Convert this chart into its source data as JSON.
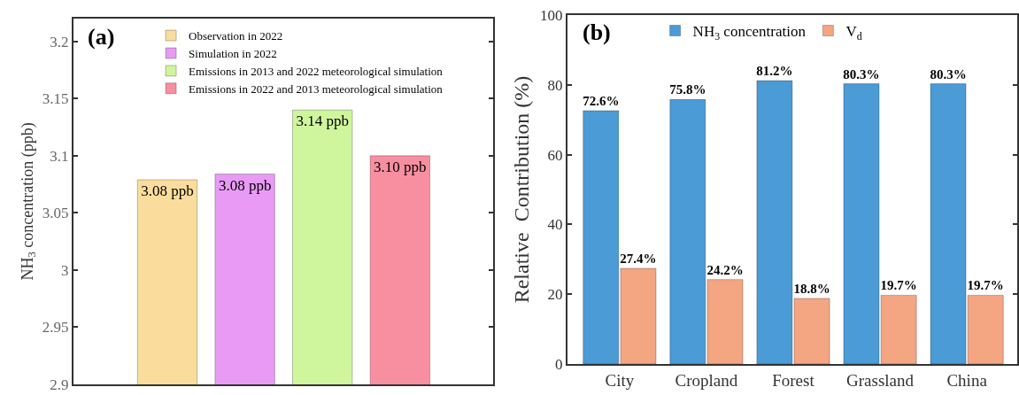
{
  "chart_data": [
    {
      "type": "bar",
      "categories": [
        null,
        null,
        null,
        null
      ],
      "ylabel": "NH$_{3}$ concentration (ppb)",
      "annotations": [
        "(a)"
      ],
      "ylim": [
        2.9,
        3.22
      ],
      "yticks": [
        2.9,
        2.95,
        3,
        3.05,
        3.1,
        3.15,
        3.2
      ],
      "legend": "top",
      "grid": false,
      "series": [
        {
          "name": "Observation in 2022",
          "color": "#fadd9d",
          "values": [
            3.079,
            null,
            null,
            null
          ],
          "value_labels": [
            "3.08 ppb",
            null,
            null,
            null
          ]
        },
        {
          "name": "Simulation in 2022",
          "color": "#e89af5",
          "values": [
            null,
            3.084,
            null,
            null
          ],
          "value_labels": [
            null,
            "3.08 ppb",
            null,
            null
          ]
        },
        {
          "name": "Emissions in 2013 and 2022 meteorological simulation",
          "color": "#cff59d",
          "values": [
            null,
            null,
            3.14,
            null
          ],
          "value_labels": [
            null,
            null,
            "3.14 ppb",
            null
          ]
        },
        {
          "name": "Emissions in 2022 and 2013 meteorological simulation",
          "color": "#f78fa1",
          "values": [
            null,
            null,
            null,
            3.1
          ],
          "value_labels": [
            null,
            null,
            null,
            "3.10 ppb"
          ]
        }
      ]
    },
    {
      "type": "bar",
      "categories": [
        "City",
        "Cropland",
        "Forest",
        "Grassland",
        "China"
      ],
      "ylabel": "Relative  Contribution (%)",
      "annotations": [
        "(b)"
      ],
      "ylim": [
        0,
        100
      ],
      "yticks": [
        0,
        20,
        40,
        60,
        80,
        100
      ],
      "legend": "top",
      "grid": false,
      "series": [
        {
          "name": "NH$_{3}$ concentration",
          "color": "#4a9bd6",
          "values": [
            72.6,
            75.8,
            81.2,
            80.3,
            80.3
          ],
          "value_labels": [
            "72.6%",
            "75.8%",
            "81.2%",
            "80.3%",
            "80.3%"
          ]
        },
        {
          "name": "V$_{d}$",
          "color": "#f4a582",
          "values": [
            27.4,
            24.2,
            18.8,
            19.7,
            19.7
          ],
          "value_labels": [
            "27.4%",
            "24.2%",
            "18.8%",
            "19.7%",
            "19.7%"
          ]
        }
      ]
    }
  ]
}
